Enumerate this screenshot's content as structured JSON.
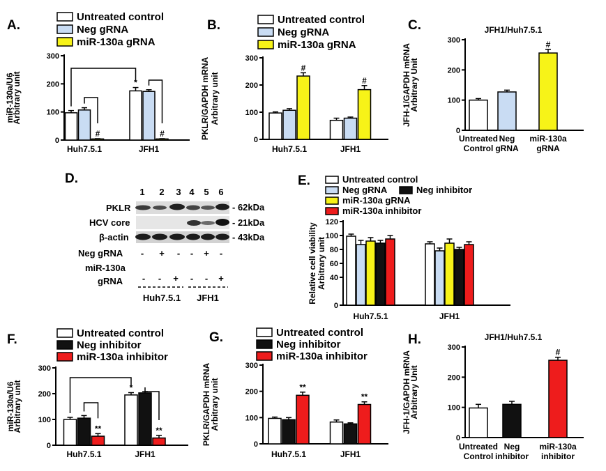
{
  "colors": {
    "white": "#ffffff",
    "blue": "#c9dcf3",
    "yellow": "#f7f318",
    "black": "#111111",
    "red": "#ee1c1c"
  },
  "panelD": {
    "label": "D.",
    "lanes": [
      "1",
      "2",
      "3",
      "4",
      "5",
      "6"
    ],
    "bands": [
      "PKLR",
      "HCV core",
      "β-actin"
    ],
    "sizes": [
      "- 62kDa",
      "- 21kDa",
      "- 43kDa"
    ],
    "row_neg_label": "Neg gRNA",
    "row_mir_label_1": "miR-130a",
    "row_mir_label_2": "gRNA",
    "neg_signs": [
      "-",
      "+",
      "-",
      "-",
      "+",
      "-"
    ],
    "mir_signs": [
      "-",
      "-",
      "+",
      "-",
      "-",
      "+"
    ],
    "groups": [
      "Huh7.5.1",
      "JFH1"
    ]
  },
  "chart_data": [
    {
      "id": "A",
      "label": "A.",
      "type": "bar",
      "ylabel": [
        "miR-130a/U6",
        "Arbitrary unit"
      ],
      "ylim": [
        0,
        300
      ],
      "yticks": [
        0,
        100,
        200,
        300
      ],
      "categories": [
        "Huh7.5.1",
        "JFH1"
      ],
      "legend": [
        "Untreated control",
        "Neg gRNA",
        "miR-130a gRNA"
      ],
      "series": [
        {
          "name": "Untreated control",
          "color": "white",
          "values": [
            97,
            175
          ],
          "errors": [
            8,
            12
          ],
          "marks": [
            "",
            "*"
          ]
        },
        {
          "name": "Neg gRNA",
          "color": "blue",
          "values": [
            107,
            173
          ],
          "errors": [
            8,
            6
          ],
          "marks": [
            "",
            ""
          ]
        },
        {
          "name": "miR-130a gRNA",
          "color": "yellow",
          "values": [
            4,
            4
          ],
          "errors": [
            1,
            1
          ],
          "marks": [
            "#",
            "#"
          ]
        }
      ]
    },
    {
      "id": "B",
      "label": "B.",
      "type": "bar",
      "ylabel": [
        "PKLR/GAPDH mRNA",
        "Arbitrary unit"
      ],
      "ylim": [
        0,
        300
      ],
      "yticks": [
        0,
        100,
        200,
        300
      ],
      "categories": [
        "Huh7.5.1",
        "JFH1"
      ],
      "legend": [
        "Untreated control",
        "Neg gRNA",
        "miR-130a gRNA"
      ],
      "series": [
        {
          "name": "Untreated control",
          "color": "white",
          "values": [
            97,
            70
          ],
          "errors": [
            4,
            8
          ],
          "marks": [
            "",
            ""
          ]
        },
        {
          "name": "Neg gRNA",
          "color": "blue",
          "values": [
            107,
            78
          ],
          "errors": [
            6,
            4
          ],
          "marks": [
            "",
            ""
          ]
        },
        {
          "name": "miR-130a gRNA",
          "color": "yellow",
          "values": [
            233,
            183
          ],
          "errors": [
            12,
            15
          ],
          "marks": [
            "#",
            "#"
          ]
        }
      ]
    },
    {
      "id": "C",
      "label": "C.",
      "type": "bar",
      "title": "JFH1/Huh7.5.1",
      "ylabel": [
        "JFH-1/GAPDH mRNA",
        "Arbitrary Unit"
      ],
      "ylim": [
        0,
        300
      ],
      "yticks": [
        0,
        100,
        200,
        300
      ],
      "categories": [
        [
          "Untreated",
          "Control"
        ],
        [
          "Neg",
          "gRNA"
        ],
        [
          "miR-130a",
          "gRNA"
        ]
      ],
      "bars": [
        {
          "value": 100,
          "error": 5,
          "color": "white",
          "mark": ""
        },
        {
          "value": 127,
          "error": 6,
          "color": "blue",
          "mark": ""
        },
        {
          "value": 256,
          "error": 12,
          "color": "yellow",
          "mark": "#"
        }
      ]
    },
    {
      "id": "E",
      "label": "E.",
      "type": "bar",
      "ylabel": [
        "Relative cell viability",
        "Arbitrary unit"
      ],
      "ylim": [
        0,
        120
      ],
      "yticks": [
        0,
        40,
        60,
        80,
        100,
        120
      ],
      "categories": [
        "Huh7.5.1",
        "JFH1"
      ],
      "legend": [
        "Untreated control",
        "Neg gRNA",
        "Neg inhibitor",
        "miR-130a gRNA",
        "miR-130a inhibitor"
      ],
      "series": [
        {
          "name": "Untreated control",
          "color": "white",
          "values": [
            99,
            88
          ],
          "errors": [
            3,
            3
          ],
          "marks": [
            "",
            ""
          ]
        },
        {
          "name": "Neg gRNA",
          "color": "blue",
          "values": [
            87,
            78
          ],
          "errors": [
            6,
            4
          ],
          "marks": [
            "",
            ""
          ]
        },
        {
          "name": "miR-130a gRNA",
          "color": "yellow",
          "values": [
            92,
            89
          ],
          "errors": [
            5,
            6
          ],
          "marks": [
            "",
            ""
          ]
        },
        {
          "name": "Neg inhibitor",
          "color": "black",
          "values": [
            89,
            80
          ],
          "errors": [
            4,
            3
          ],
          "marks": [
            "",
            ""
          ]
        },
        {
          "name": "miR-130a inhibitor",
          "color": "red",
          "values": [
            95,
            87
          ],
          "errors": [
            5,
            4
          ],
          "marks": [
            "",
            ""
          ]
        }
      ]
    },
    {
      "id": "F",
      "label": "F.",
      "type": "bar",
      "ylabel": [
        "miR-130a/U6",
        "Arbitrary unit"
      ],
      "ylim": [
        0,
        300
      ],
      "yticks": [
        0,
        100,
        200,
        300
      ],
      "categories": [
        "Huh7.5.1",
        "JFH1"
      ],
      "legend": [
        "Untreated control",
        "Neg inhibitor",
        "miR-130a inhibitor"
      ],
      "series": [
        {
          "name": "Untreated control",
          "color": "white",
          "values": [
            100,
            195
          ],
          "errors": [
            8,
            9
          ],
          "marks": [
            "",
            "*"
          ]
        },
        {
          "name": "Neg inhibitor",
          "color": "black",
          "values": [
            105,
            203
          ],
          "errors": [
            10,
            5
          ],
          "marks": [
            "",
            ""
          ]
        },
        {
          "name": "miR-130a inhibitor",
          "color": "red",
          "values": [
            35,
            28
          ],
          "errors": [
            10,
            10
          ],
          "marks": [
            "**",
            "**"
          ]
        }
      ]
    },
    {
      "id": "G",
      "label": "G.",
      "type": "bar",
      "ylabel": [
        "PKLR/GAPDH mRNA",
        "Arbitrary unit"
      ],
      "ylim": [
        0,
        300
      ],
      "yticks": [
        0,
        100,
        200,
        300
      ],
      "categories": [
        "Huh7.5.1",
        "JFH1"
      ],
      "legend": [
        "Untreated control",
        "Neg inhibitor",
        "miR-130a inhibitor"
      ],
      "series": [
        {
          "name": "Untreated control",
          "color": "white",
          "values": [
            97,
            83
          ],
          "errors": [
            5,
            8
          ],
          "marks": [
            "",
            ""
          ]
        },
        {
          "name": "Neg inhibitor",
          "color": "black",
          "values": [
            92,
            76
          ],
          "errors": [
            8,
            4
          ],
          "marks": [
            "",
            ""
          ]
        },
        {
          "name": "miR-130a inhibitor",
          "color": "red",
          "values": [
            185,
            150
          ],
          "errors": [
            12,
            10
          ],
          "marks": [
            "**",
            "**"
          ]
        }
      ]
    },
    {
      "id": "H",
      "label": "H.",
      "type": "bar",
      "title": "JFH1/Huh7.5.1",
      "ylabel": [
        "JFH-1/GAPDH mRNA",
        "Arbitrary Unit"
      ],
      "ylim": [
        0,
        300
      ],
      "yticks": [
        0,
        100,
        200,
        300
      ],
      "categories": [
        [
          "Untreated",
          "Control"
        ],
        [
          "Neg",
          "inhibitor"
        ],
        [
          "miR-130a",
          "inhibitor"
        ]
      ],
      "bars": [
        {
          "value": 98,
          "error": 12,
          "color": "white",
          "mark": ""
        },
        {
          "value": 110,
          "error": 10,
          "color": "black",
          "mark": ""
        },
        {
          "value": 256,
          "error": 10,
          "color": "red",
          "mark": "#"
        }
      ]
    }
  ]
}
